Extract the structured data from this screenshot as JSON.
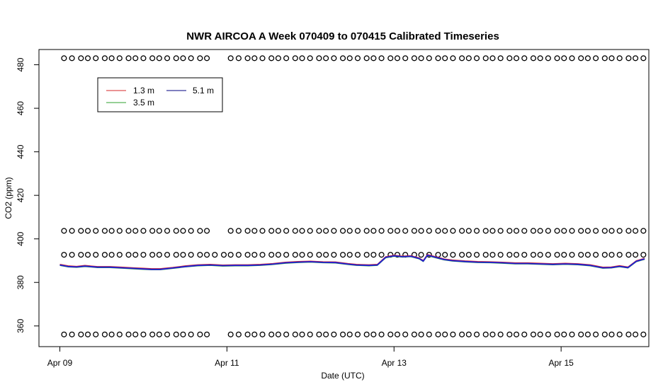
{
  "chart_data": {
    "type": "line",
    "title": "NWR AIRCOA A  Week 070409 to 070415  Calibrated Timeseries",
    "xlabel": "Date (UTC)",
    "ylabel": "CO2 (ppm)",
    "x_ticks": [
      {
        "day": 0,
        "label": "Apr 09"
      },
      {
        "day": 2,
        "label": "Apr 11"
      },
      {
        "day": 4,
        "label": "Apr 13"
      },
      {
        "day": 6,
        "label": "Apr 15"
      }
    ],
    "y_ticks": [
      360,
      380,
      400,
      420,
      440,
      460,
      480
    ],
    "xlim_days": [
      -0.25,
      7.05
    ],
    "ylim": [
      350.5,
      487
    ],
    "grid": false,
    "legend": {
      "placement": "top-left",
      "entries": [
        {
          "name": "1.3 m",
          "color": "#d62728"
        },
        {
          "name": "3.5 m",
          "color": "#2ca02c"
        },
        {
          "name": "5.1 m",
          "color": "#000080"
        }
      ]
    },
    "series": [
      {
        "name": "1.3 m",
        "color": "#d62728"
      },
      {
        "name": "3.5 m",
        "color": "#2ca02c"
      },
      {
        "name": "5.1 m",
        "color": "#1f1fd6"
      }
    ],
    "co2_trace": {
      "x_days": [
        0,
        0.1,
        0.2,
        0.3,
        0.45,
        0.6,
        0.75,
        0.9,
        1.0,
        1.1,
        1.2,
        1.35,
        1.5,
        1.65,
        1.8,
        1.95,
        2.1,
        2.25,
        2.4,
        2.55,
        2.7,
        2.85,
        3.0,
        3.15,
        3.3,
        3.45,
        3.55,
        3.7,
        3.8,
        3.9,
        4.0,
        4.1,
        4.2,
        4.3,
        4.35,
        4.4,
        4.5,
        4.6,
        4.7,
        4.85,
        5.0,
        5.15,
        5.3,
        5.45,
        5.6,
        5.75,
        5.9,
        6.05,
        6.2,
        6.35,
        6.5,
        6.6,
        6.7,
        6.8,
        6.9,
        7.0
      ],
      "co2": [
        388.0,
        387.3,
        387.1,
        387.5,
        387.0,
        387.0,
        386.7,
        386.4,
        386.2,
        386.0,
        386.0,
        386.6,
        387.3,
        387.8,
        388.0,
        387.7,
        387.8,
        387.8,
        388.0,
        388.4,
        389.0,
        389.3,
        389.5,
        389.2,
        389.1,
        388.4,
        388.0,
        387.8,
        388.0,
        391.5,
        392.2,
        391.8,
        392.0,
        391.0,
        389.8,
        392.5,
        391.5,
        390.5,
        390.0,
        389.6,
        389.3,
        389.2,
        389.0,
        388.7,
        388.7,
        388.5,
        388.3,
        388.5,
        388.3,
        387.8,
        386.7,
        386.8,
        387.4,
        386.8,
        389.7,
        390.8
      ]
    },
    "flag_rows": [
      {
        "co2": 483.0,
        "spacing_days": 0.095,
        "gaps": [
          [
            1.8,
            2.0
          ]
        ]
      },
      {
        "co2": 403.7,
        "spacing_days": 0.095,
        "gaps": [
          [
            1.8,
            2.0
          ]
        ]
      },
      {
        "co2": 392.7,
        "spacing_days": 0.095,
        "gaps": []
      },
      {
        "co2": 356.1,
        "spacing_days": 0.095,
        "gaps": [
          [
            1.8,
            2.0
          ]
        ]
      }
    ],
    "flag_x_range_days": [
      0.05,
      7.0
    ]
  }
}
